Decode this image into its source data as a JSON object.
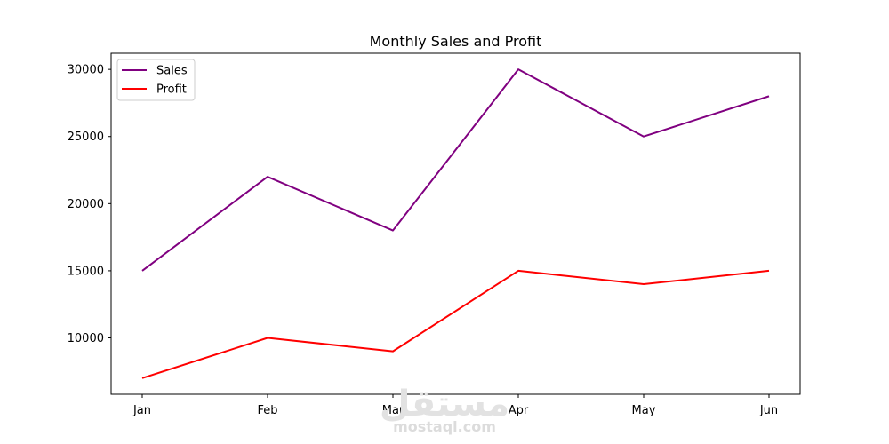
{
  "chart_data": {
    "type": "line",
    "title": "Monthly Sales and Profit",
    "xlabel": "",
    "ylabel": "",
    "categories": [
      "Jan",
      "Feb",
      "Mar",
      "Apr",
      "May",
      "Jun"
    ],
    "series": [
      {
        "name": "Sales",
        "values": [
          15000,
          22000,
          18000,
          30000,
          25000,
          28000
        ],
        "color": "#800080"
      },
      {
        "name": "Profit",
        "values": [
          7000,
          10000,
          9000,
          15000,
          14000,
          15000
        ],
        "color": "#ff0000"
      }
    ],
    "ylim": [
      5800,
      31200
    ],
    "yticks": [
      10000,
      15000,
      20000,
      25000,
      30000
    ],
    "grid": false,
    "legend_position": "top-left"
  },
  "watermark": {
    "arabic": "مستقل",
    "url": "mostaql.com"
  }
}
